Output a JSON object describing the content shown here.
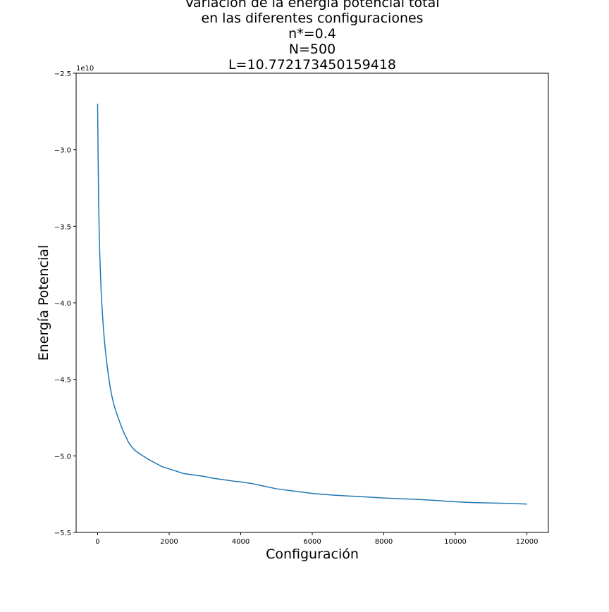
{
  "chart_data": {
    "type": "line",
    "title_lines": [
      "Variación de la energía potencial total",
      "en las diferentes configuraciones",
      "n*=0.4",
      "N=500",
      "L=10.772173450159418"
    ],
    "xlabel": "Configuración",
    "ylabel": "Energía Potencial",
    "y_offset_text": "1e10",
    "xlim": [
      -600,
      12600
    ],
    "ylim": [
      -5.5,
      -2.5
    ],
    "x_ticks": [
      0,
      2000,
      4000,
      6000,
      8000,
      10000,
      12000
    ],
    "x_tick_labels": [
      "0",
      "2000",
      "4000",
      "6000",
      "8000",
      "10000",
      "12000"
    ],
    "y_ticks": [
      -5.5,
      -5.0,
      -4.5,
      -4.0,
      -3.5,
      -3.0,
      -2.5
    ],
    "y_tick_labels": [
      "−5.5",
      "−5.0",
      "−4.5",
      "−4.0",
      "−3.5",
      "−3.0",
      "−2.5"
    ],
    "grid": false,
    "series": [
      {
        "color": "#1f77b4",
        "x": [
          0,
          15,
          30,
          50,
          75,
          100,
          130,
          160,
          200,
          250,
          300,
          350,
          400,
          450,
          500,
          560,
          620,
          700,
          780,
          860,
          950,
          1050,
          1200,
          1400,
          1600,
          1800,
          2000,
          2200,
          2400,
          2700,
          3000,
          3200,
          3500,
          3800,
          4000,
          4300,
          4600,
          5000,
          5500,
          6000,
          6500,
          7000,
          7500,
          8000,
          8500,
          9000,
          9500,
          10000,
          10500,
          11000,
          11500,
          12000
        ],
        "y": [
          -2.7,
          -3.05,
          -3.35,
          -3.6,
          -3.78,
          -3.93,
          -4.05,
          -4.16,
          -4.27,
          -4.38,
          -4.47,
          -4.55,
          -4.61,
          -4.66,
          -4.7,
          -4.74,
          -4.78,
          -4.83,
          -4.87,
          -4.91,
          -4.94,
          -4.965,
          -4.99,
          -5.02,
          -5.045,
          -5.07,
          -5.085,
          -5.1,
          -5.115,
          -5.125,
          -5.135,
          -5.145,
          -5.155,
          -5.165,
          -5.17,
          -5.18,
          -5.195,
          -5.215,
          -5.23,
          -5.245,
          -5.255,
          -5.262,
          -5.268,
          -5.275,
          -5.28,
          -5.285,
          -5.292,
          -5.3,
          -5.305,
          -5.308,
          -5.31,
          -5.315
        ]
      }
    ]
  }
}
